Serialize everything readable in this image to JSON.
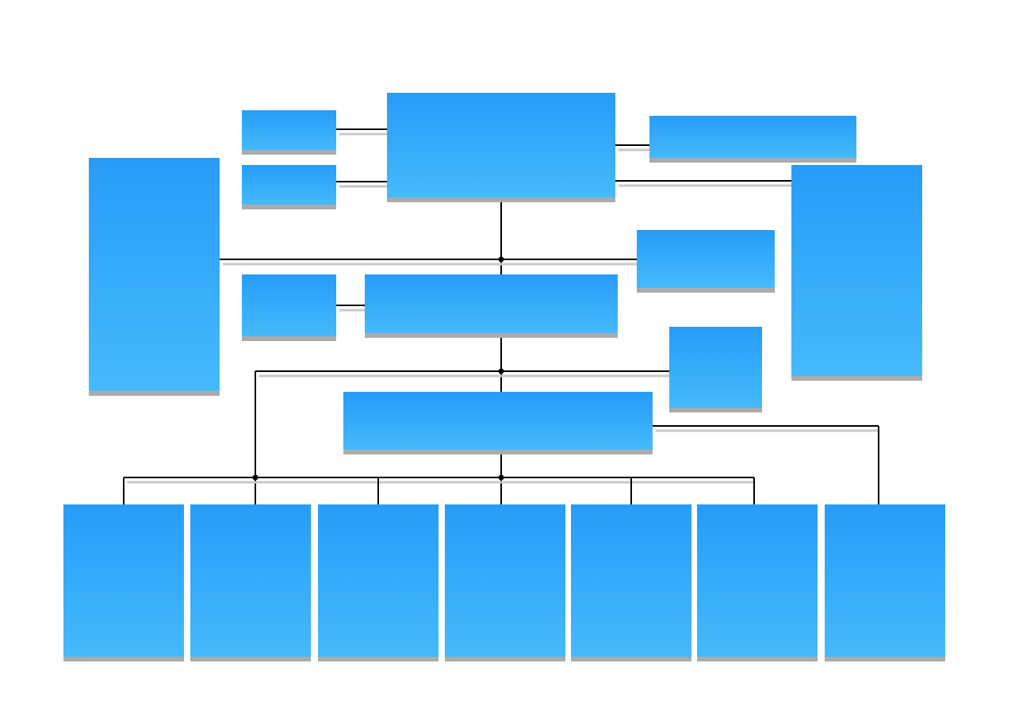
{
  "diagram": {
    "type": "org-chart",
    "colors": {
      "box_top": "#279cf8",
      "box_bottom": "#45bafc",
      "shadow": "#ababab",
      "connector": "#000000",
      "connector_shadow": "#c8c8c8",
      "background": "#ffffff"
    }
  }
}
